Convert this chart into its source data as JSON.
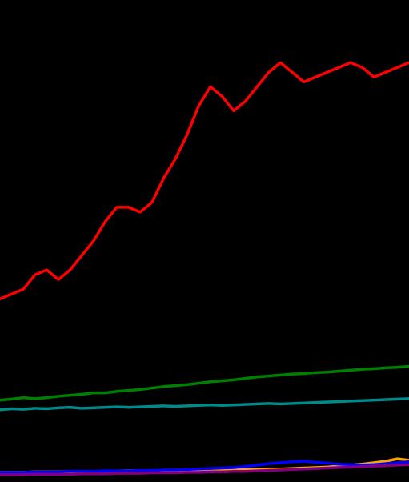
{
  "background_color": "#000000",
  "line_width": 2.5,
  "figsize": [
    5.11,
    6.02
  ],
  "dpi": 100,
  "xlim": [
    0,
    35
  ],
  "ylim": [
    0,
    100
  ],
  "series": {
    "Chrome": {
      "color": "#ff0000",
      "data": [
        38,
        39,
        40,
        43,
        44,
        42,
        44,
        47,
        50,
        54,
        57,
        57,
        56,
        58,
        63,
        67,
        72,
        78,
        82,
        80,
        77,
        79,
        82,
        85,
        87,
        85,
        83,
        84,
        85,
        86,
        87,
        86,
        84,
        85,
        86,
        87
      ]
    },
    "Firefox": {
      "color": "#008000",
      "data": [
        17,
        17.2,
        17.5,
        17.3,
        17.5,
        17.8,
        18,
        18.2,
        18.5,
        18.5,
        18.8,
        19,
        19.2,
        19.5,
        19.8,
        20,
        20.2,
        20.5,
        20.8,
        21,
        21.2,
        21.5,
        21.8,
        22,
        22.2,
        22.4,
        22.5,
        22.7,
        22.8,
        23,
        23.2,
        23.4,
        23.5,
        23.7,
        23.8,
        24
      ]
    },
    "IE": {
      "color": "#008b8b",
      "data": [
        15,
        15.2,
        15.1,
        15.3,
        15.2,
        15.4,
        15.5,
        15.3,
        15.4,
        15.5,
        15.6,
        15.5,
        15.6,
        15.7,
        15.8,
        15.7,
        15.8,
        15.9,
        16.0,
        15.9,
        16.0,
        16.1,
        16.2,
        16.3,
        16.2,
        16.3,
        16.4,
        16.5,
        16.6,
        16.7,
        16.8,
        16.9,
        17.0,
        17.1,
        17.2,
        17.3
      ]
    },
    "Opera": {
      "color": "#ffa500",
      "data": [
        2.0,
        2.0,
        2.0,
        2.1,
        2.1,
        2.1,
        2.1,
        2.2,
        2.2,
        2.2,
        2.2,
        2.3,
        2.3,
        2.3,
        2.3,
        2.4,
        2.4,
        2.4,
        2.5,
        2.5,
        2.5,
        2.6,
        2.6,
        2.7,
        2.7,
        2.8,
        2.9,
        3.0,
        3.1,
        3.3,
        3.5,
        3.7,
        4.0,
        4.3,
        4.8,
        4.5
      ]
    },
    "Safari": {
      "color": "#0000ff",
      "data": [
        2.0,
        2.0,
        2.0,
        2.1,
        2.1,
        2.1,
        2.2,
        2.2,
        2.2,
        2.3,
        2.3,
        2.3,
        2.4,
        2.4,
        2.5,
        2.5,
        2.6,
        2.7,
        2.8,
        2.9,
        3.0,
        3.2,
        3.5,
        3.8,
        4.0,
        4.2,
        4.3,
        4.1,
        3.9,
        3.7,
        3.6,
        3.5,
        3.6,
        3.8,
        4.0,
        4.2
      ]
    },
    "Other": {
      "color": "#800080",
      "data": [
        1.5,
        1.5,
        1.5,
        1.6,
        1.6,
        1.6,
        1.6,
        1.7,
        1.7,
        1.7,
        1.8,
        1.8,
        1.8,
        1.9,
        1.9,
        1.9,
        2.0,
        2.0,
        2.1,
        2.1,
        2.2,
        2.2,
        2.3,
        2.4,
        2.5,
        2.6,
        2.7,
        2.8,
        2.9,
        3.0,
        3.1,
        3.2,
        3.3,
        3.4,
        3.5,
        3.6
      ]
    }
  }
}
